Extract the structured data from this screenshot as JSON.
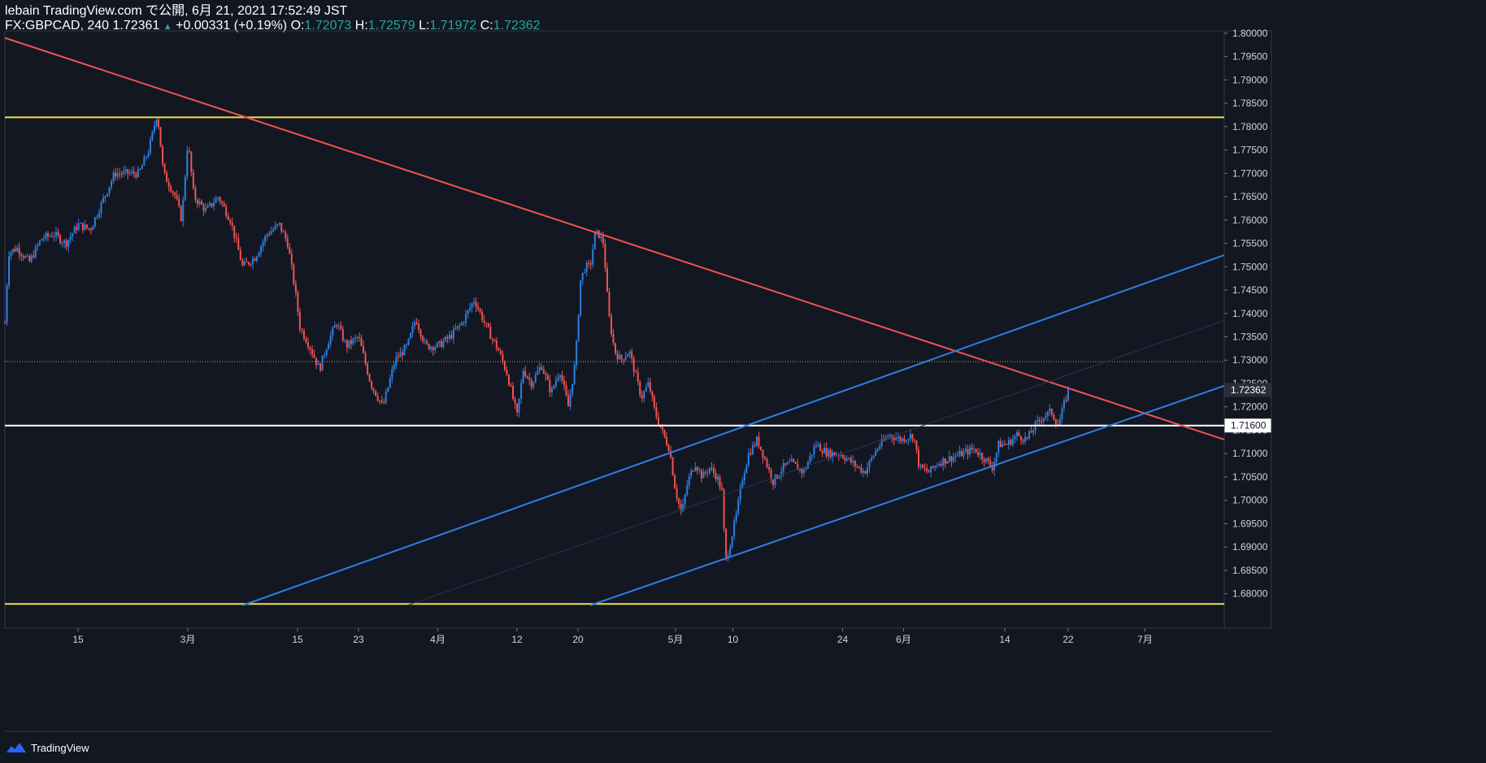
{
  "header": {
    "publisher_line": "lebain TradingView.com で公開, 6月 21, 2021 17:52:49 JST",
    "symbol": "FX:GBPCAD, 240",
    "last_price": "1.72361",
    "up_arrow": "▲",
    "change": "+0.00331 (+0.19%)",
    "open_label": "O:",
    "open_value": "1.72073",
    "high_label": "H:",
    "high_value": "1.72579",
    "low_label": "L:",
    "low_value": "1.71972",
    "close_label": "C:",
    "close_value": "1.72362"
  },
  "footer": {
    "logo_text": "TradingView",
    "logo_icon": "tradingview-cloud-icon"
  },
  "colors": {
    "background": "#131722",
    "up_candle": "#2f7fe0",
    "down_candle": "#ef5350",
    "resistance_line": "#ef5350",
    "channel_line": "#2f7fe0",
    "horizontal_yellow": "#f0e040",
    "horizontal_white": "#ffffff",
    "dotted_level": "#c8a838",
    "axis_text": "#d1d4dc"
  },
  "chart_data": {
    "type": "candlestick",
    "symbol": "GBPCAD",
    "interval": "240",
    "ylim": [
      1.6775,
      1.8005
    ],
    "y_ticks": [
      "1.80000",
      "1.79500",
      "1.79000",
      "1.78500",
      "1.78000",
      "1.77500",
      "1.77000",
      "1.76500",
      "1.76000",
      "1.75500",
      "1.75000",
      "1.74500",
      "1.74000",
      "1.73500",
      "1.73000",
      "1.72500",
      "1.72000",
      "1.71500",
      "1.71000",
      "1.70500",
      "1.70000",
      "1.69500",
      "1.69000",
      "1.68500",
      "1.68000"
    ],
    "x_ticks": [
      {
        "label": "15",
        "x": 0.06
      },
      {
        "label": "3月",
        "x": 0.15
      },
      {
        "label": "15",
        "x": 0.24
      },
      {
        "label": "23",
        "x": 0.29
      },
      {
        "label": "4月",
        "x": 0.355
      },
      {
        "label": "12",
        "x": 0.42
      },
      {
        "label": "20",
        "x": 0.47
      },
      {
        "label": "5月",
        "x": 0.55
      },
      {
        "label": "10",
        "x": 0.597
      },
      {
        "label": "24",
        "x": 0.687
      },
      {
        "label": "6月",
        "x": 0.737
      },
      {
        "label": "14",
        "x": 0.82
      },
      {
        "label": "22",
        "x": 0.872
      },
      {
        "label": "7月",
        "x": 0.935
      }
    ],
    "path_keypoints": [
      [
        0.0,
        1.738
      ],
      [
        0.003,
        1.753
      ],
      [
        0.01,
        1.754
      ],
      [
        0.02,
        1.751
      ],
      [
        0.03,
        1.756
      ],
      [
        0.04,
        1.757
      ],
      [
        0.05,
        1.755
      ],
      [
        0.06,
        1.759
      ],
      [
        0.07,
        1.758
      ],
      [
        0.08,
        1.764
      ],
      [
        0.09,
        1.77
      ],
      [
        0.1,
        1.77
      ],
      [
        0.11,
        1.77
      ],
      [
        0.118,
        1.775
      ],
      [
        0.125,
        1.783
      ],
      [
        0.13,
        1.77
      ],
      [
        0.14,
        1.765
      ],
      [
        0.145,
        1.76
      ],
      [
        0.15,
        1.777
      ],
      [
        0.155,
        1.765
      ],
      [
        0.165,
        1.762
      ],
      [
        0.175,
        1.765
      ],
      [
        0.185,
        1.76
      ],
      [
        0.195,
        1.75
      ],
      [
        0.205,
        1.752
      ],
      [
        0.215,
        1.757
      ],
      [
        0.225,
        1.759
      ],
      [
        0.232,
        1.755
      ],
      [
        0.238,
        1.745
      ],
      [
        0.242,
        1.737
      ],
      [
        0.25,
        1.733
      ],
      [
        0.258,
        1.728
      ],
      [
        0.265,
        1.734
      ],
      [
        0.272,
        1.738
      ],
      [
        0.28,
        1.733
      ],
      [
        0.29,
        1.735
      ],
      [
        0.3,
        1.725
      ],
      [
        0.31,
        1.72
      ],
      [
        0.32,
        1.73
      ],
      [
        0.33,
        1.733
      ],
      [
        0.337,
        1.739
      ],
      [
        0.345,
        1.733
      ],
      [
        0.355,
        1.733
      ],
      [
        0.365,
        1.735
      ],
      [
        0.375,
        1.738
      ],
      [
        0.385,
        1.743
      ],
      [
        0.395,
        1.737
      ],
      [
        0.405,
        1.732
      ],
      [
        0.412,
        1.727
      ],
      [
        0.42,
        1.718
      ],
      [
        0.425,
        1.728
      ],
      [
        0.432,
        1.725
      ],
      [
        0.44,
        1.729
      ],
      [
        0.448,
        1.723
      ],
      [
        0.455,
        1.728
      ],
      [
        0.462,
        1.72
      ],
      [
        0.468,
        1.73
      ],
      [
        0.472,
        1.747
      ],
      [
        0.476,
        1.75
      ],
      [
        0.48,
        1.75
      ],
      [
        0.484,
        1.757
      ],
      [
        0.487,
        1.757
      ],
      [
        0.491,
        1.755
      ],
      [
        0.495,
        1.74
      ],
      [
        0.5,
        1.732
      ],
      [
        0.505,
        1.73
      ],
      [
        0.512,
        1.732
      ],
      [
        0.517,
        1.727
      ],
      [
        0.522,
        1.722
      ],
      [
        0.528,
        1.725
      ],
      [
        0.533,
        1.719
      ],
      [
        0.54,
        1.714
      ],
      [
        0.545,
        1.711
      ],
      [
        0.55,
        1.702
      ],
      [
        0.555,
        1.697
      ],
      [
        0.56,
        1.704
      ],
      [
        0.566,
        1.708
      ],
      [
        0.572,
        1.705
      ],
      [
        0.578,
        1.707
      ],
      [
        0.584,
        1.705
      ],
      [
        0.588,
        1.702
      ],
      [
        0.591,
        1.687
      ],
      [
        0.595,
        1.691
      ],
      [
        0.6,
        1.697
      ],
      [
        0.605,
        1.705
      ],
      [
        0.61,
        1.71
      ],
      [
        0.617,
        1.713
      ],
      [
        0.623,
        1.709
      ],
      [
        0.63,
        1.704
      ],
      [
        0.638,
        1.707
      ],
      [
        0.645,
        1.708
      ],
      [
        0.655,
        1.706
      ],
      [
        0.665,
        1.712
      ],
      [
        0.675,
        1.71
      ],
      [
        0.685,
        1.71
      ],
      [
        0.695,
        1.708
      ],
      [
        0.705,
        1.706
      ],
      [
        0.715,
        1.711
      ],
      [
        0.725,
        1.714
      ],
      [
        0.735,
        1.713
      ],
      [
        0.745,
        1.714
      ],
      [
        0.75,
        1.707
      ],
      [
        0.758,
        1.706
      ],
      [
        0.765,
        1.708
      ],
      [
        0.775,
        1.709
      ],
      [
        0.785,
        1.71
      ],
      [
        0.795,
        1.711
      ],
      [
        0.803,
        1.709
      ],
      [
        0.81,
        1.707
      ],
      [
        0.815,
        1.712
      ],
      [
        0.822,
        1.712
      ],
      [
        0.83,
        1.714
      ],
      [
        0.838,
        1.713
      ],
      [
        0.845,
        1.716
      ],
      [
        0.852,
        1.718
      ],
      [
        0.858,
        1.719
      ],
      [
        0.864,
        1.716
      ],
      [
        0.868,
        1.72
      ],
      [
        0.872,
        1.7236
      ]
    ],
    "trend_lines": [
      {
        "name": "descending-resistance",
        "color": "#ef5350",
        "p1": [
          0.0,
          1.799
        ],
        "p2": [
          1.0,
          1.713
        ]
      },
      {
        "name": "channel-upper",
        "color": "#2f7fe0",
        "p1": [
          0.195,
          1.6775
        ],
        "p2": [
          1.0,
          1.7525
        ]
      },
      {
        "name": "channel-lower",
        "color": "#2f7fe0",
        "p1": [
          0.48,
          1.6775
        ],
        "p2": [
          1.0,
          1.7245
        ]
      },
      {
        "name": "channel-mid",
        "color": "#2a3350",
        "p1": [
          0.33,
          1.6775
        ],
        "p2": [
          1.0,
          1.7385
        ]
      }
    ],
    "horizontal_lines": [
      {
        "name": "yellow-top",
        "price": 1.782,
        "color": "#f0e040",
        "width": 2
      },
      {
        "name": "yellow-bottom",
        "price": 1.6778,
        "color": "#f0e040",
        "width": 2
      },
      {
        "name": "white-support",
        "price": 1.716,
        "color": "#ffffff",
        "width": 2
      },
      {
        "name": "dotted-level",
        "price": 1.7297,
        "color": "#c8a838",
        "width": 1,
        "dotted": true
      }
    ],
    "price_tags": [
      {
        "name": "last-price-tag",
        "label": "1.72362",
        "price": 1.72362,
        "bg": "#2a2e39",
        "fg": "#ffffff",
        "border": "#2a2e39"
      },
      {
        "name": "support-price-tag",
        "label": "1.71600",
        "price": 1.716,
        "bg": "#ffffff",
        "fg": "#131722",
        "border": "#ffffff"
      }
    ]
  }
}
